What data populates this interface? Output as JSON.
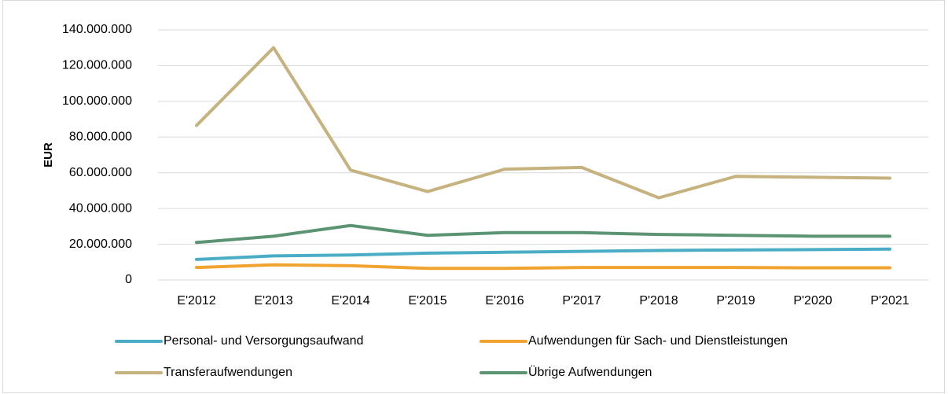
{
  "chart_data": {
    "type": "line",
    "y_label": "EUR",
    "categories": [
      "E'2012",
      "E'2013",
      "E'2014",
      "E'2015",
      "E'2016",
      "P'2017",
      "P'2018",
      "P'2019",
      "P'2020",
      "P'2021"
    ],
    "series": [
      {
        "name": "Personal- und Versorgungsaufwand",
        "color": "#4bacc6",
        "values": [
          11500000,
          13500000,
          14000000,
          15000000,
          15500000,
          16000000,
          16500000,
          16800000,
          17000000,
          17300000
        ]
      },
      {
        "name": "Aufwendungen für Sach- und Dienstleistungen",
        "color": "#f0a32e",
        "values": [
          7000000,
          8500000,
          8000000,
          6500000,
          6500000,
          7000000,
          7000000,
          7000000,
          6800000,
          6800000
        ]
      },
      {
        "name": "Transferaufwendungen",
        "color": "#c6b27f",
        "values": [
          86500000,
          130000000,
          61500000,
          49500000,
          62000000,
          63000000,
          46000000,
          58000000,
          57500000,
          57000000
        ]
      },
      {
        "name": "Übrige Aufwendungen",
        "color": "#5b9472",
        "values": [
          21000000,
          24500000,
          30500000,
          25000000,
          26500000,
          26500000,
          25500000,
          25000000,
          24500000,
          24500000
        ]
      }
    ],
    "ylim": [
      0,
      140000000
    ],
    "yticks": [
      0,
      {
        "value": 20000000,
        "label": "20.000.000"
      },
      {
        "value": 40000000,
        "label": "40.000.000"
      },
      {
        "value": 60000000,
        "label": "60.000.000"
      },
      {
        "value": 80000000,
        "label": "80.000.000"
      },
      {
        "value": 100000000,
        "label": "100.000.000"
      },
      {
        "value": 120000000,
        "label": "120.000.000"
      },
      {
        "value": 140000000,
        "label": "140.000.000"
      }
    ],
    "grid": true,
    "legend": "bottom"
  }
}
